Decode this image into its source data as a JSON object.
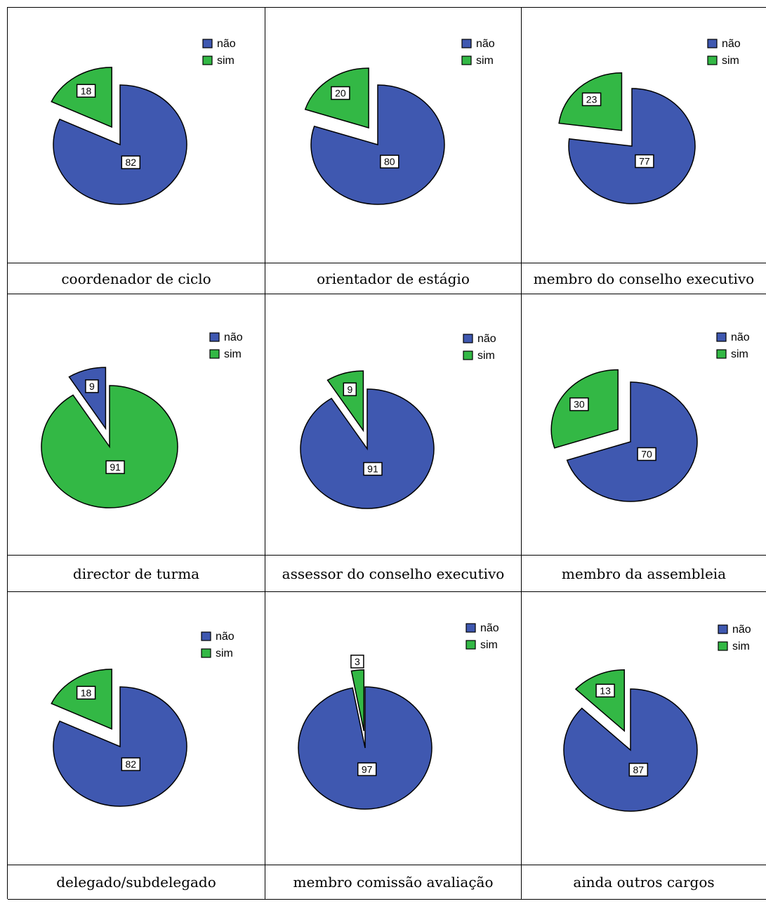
{
  "legend": [
    "não",
    "sim"
  ],
  "colors": {
    "nao": "#3f58b0",
    "sim": "#33b845"
  },
  "chart_data": [
    {
      "type": "pie",
      "caption": "coordenador de ciclo",
      "labels": [
        "não",
        "sim"
      ],
      "values": [
        82,
        18
      ],
      "exploded": "sim"
    },
    {
      "type": "pie",
      "caption": "orientador de estágio",
      "labels": [
        "não",
        "sim"
      ],
      "values": [
        80,
        20
      ],
      "exploded": "sim"
    },
    {
      "type": "pie",
      "caption": "membro do conselho executivo",
      "labels": [
        "não",
        "sim"
      ],
      "values": [
        77,
        23
      ],
      "exploded": "sim"
    },
    {
      "type": "pie",
      "caption": "director de turma",
      "labels": [
        "não",
        "sim"
      ],
      "values": [
        9,
        91
      ],
      "exploded": "não",
      "values_shown": [
        9,
        91
      ]
    },
    {
      "type": "pie",
      "caption": "assessor do conselho executivo",
      "labels": [
        "não",
        "sim"
      ],
      "values": [
        91,
        9
      ],
      "exploded": "sim"
    },
    {
      "type": "pie",
      "caption": "membro da assembleia",
      "labels": [
        "não",
        "sim"
      ],
      "values": [
        70,
        30
      ],
      "exploded": "sim"
    },
    {
      "type": "pie",
      "caption": "delegado/subdelegado",
      "labels": [
        "não",
        "sim"
      ],
      "values": [
        82,
        18
      ],
      "exploded": "sim"
    },
    {
      "type": "pie",
      "caption": "membro comissão avaliação",
      "labels": [
        "não",
        "sim"
      ],
      "values": [
        97,
        3
      ],
      "exploded": "sim"
    },
    {
      "type": "pie",
      "caption": "ainda outros cargos",
      "labels": [
        "não",
        "sim"
      ],
      "values": [
        87,
        13
      ],
      "exploded": "sim"
    }
  ]
}
